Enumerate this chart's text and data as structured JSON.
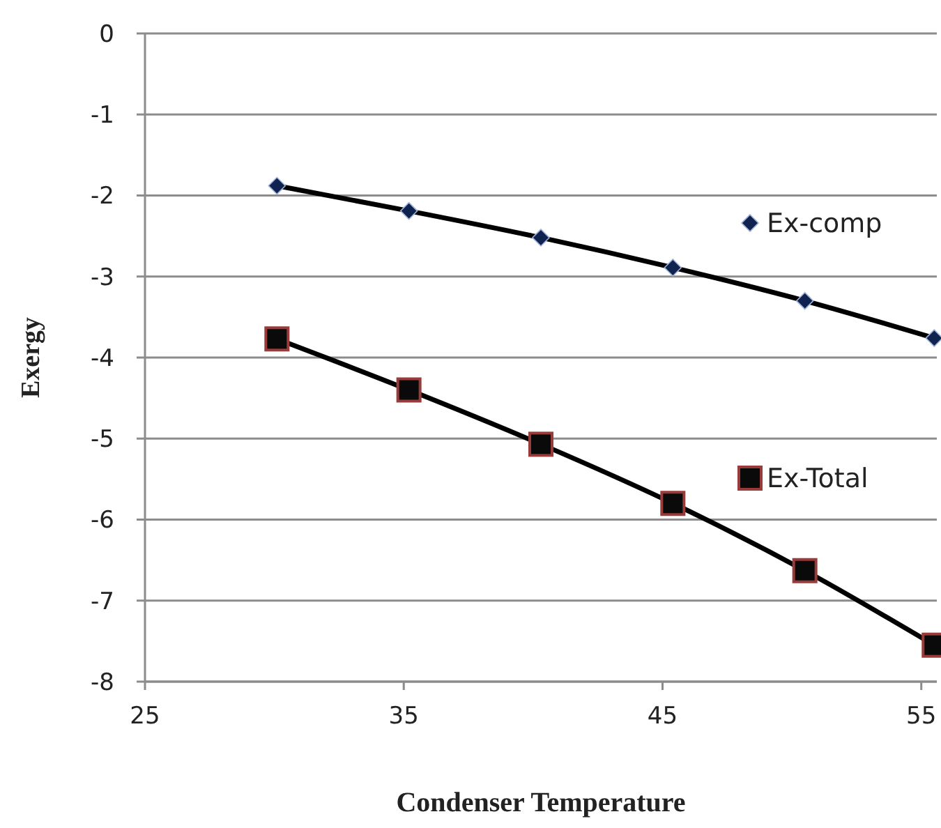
{
  "chart_data": {
    "type": "line",
    "xlabel": "Condenser Temperature",
    "ylabel": "Exergy",
    "x": [
      30.1,
      35.2,
      40.3,
      45.4,
      50.5,
      55.5
    ],
    "series": [
      {
        "name": "Ex-comp",
        "color": "#10224f",
        "marker": "diamond",
        "values": [
          -1.88,
          -2.19,
          -2.52,
          -2.89,
          -3.3,
          -3.76
        ]
      },
      {
        "name": "Ex-Total",
        "color": "#0a0a0a",
        "marker": "square",
        "values": [
          -3.77,
          -4.4,
          -5.07,
          -5.8,
          -6.63,
          -7.55
        ]
      }
    ],
    "xlim": [
      25,
      55.6
    ],
    "xticks": [
      25,
      35,
      45,
      55
    ],
    "ylim": [
      -8,
      0
    ],
    "yticks": [
      0,
      -1,
      -2,
      -3,
      -4,
      -5,
      -6,
      -7,
      -8
    ],
    "grid": "y",
    "legend": "right"
  }
}
